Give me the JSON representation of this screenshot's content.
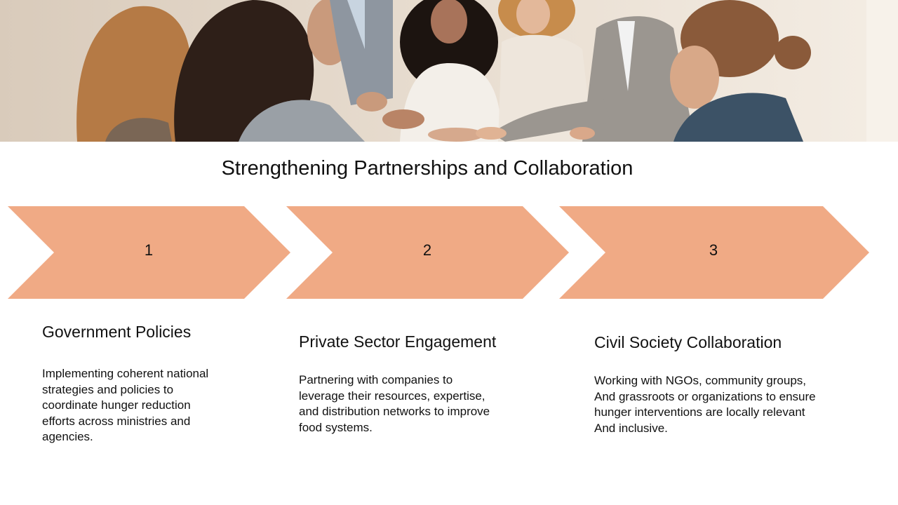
{
  "slide": {
    "title": "Strengthening Partnerships and Collaboration",
    "accent_color": "#f0aa85",
    "steps": [
      {
        "number": "1",
        "heading": "Government Policies",
        "body_lines": [
          "Implementing coherent national",
          "strategies and policies to",
          "coordinate hunger reduction",
          "efforts across ministries and",
          "agencies."
        ]
      },
      {
        "number": "2",
        "heading": "Private Sector Engagement",
        "body_lines": [
          "Partnering with companies to",
          "leverage their resources, expertise,",
          "and distribution networks to improve",
          "food systems."
        ]
      },
      {
        "number": "3",
        "heading": "Civil Society Collaboration",
        "body_lines": [
          "Working with NGOs, community groups,",
          "And grassroots or organizations to ensure",
          "hunger interventions are locally relevant",
          "And inclusive."
        ]
      }
    ]
  }
}
